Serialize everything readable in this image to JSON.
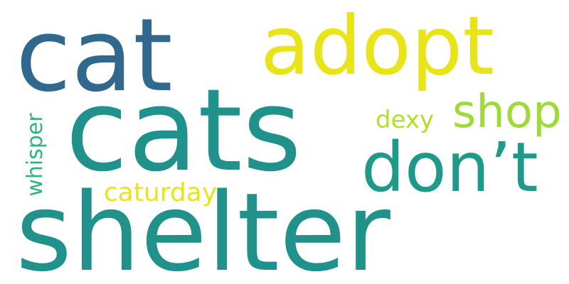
{
  "background": "#ffffff",
  "words": {
    "cat": {
      "text": "cat",
      "color": "#31688e"
    },
    "adopt": {
      "text": "adopt",
      "color": "#e8e419"
    },
    "cats": {
      "text": "cats",
      "color": "#21918c"
    },
    "shelter": {
      "text": "shelter",
      "color": "#21918c"
    },
    "dont": {
      "text": "don’t",
      "color": "#1f9a8a"
    },
    "shop": {
      "text": "shop",
      "color": "#a0da39"
    },
    "dexy": {
      "text": "dexy",
      "color": "#b5de2b"
    },
    "caturday": {
      "text": "caturday",
      "color": "#e8e419"
    },
    "whisper": {
      "text": "whisper",
      "color": "#2eb37c",
      "orientation": "vertical"
    }
  }
}
